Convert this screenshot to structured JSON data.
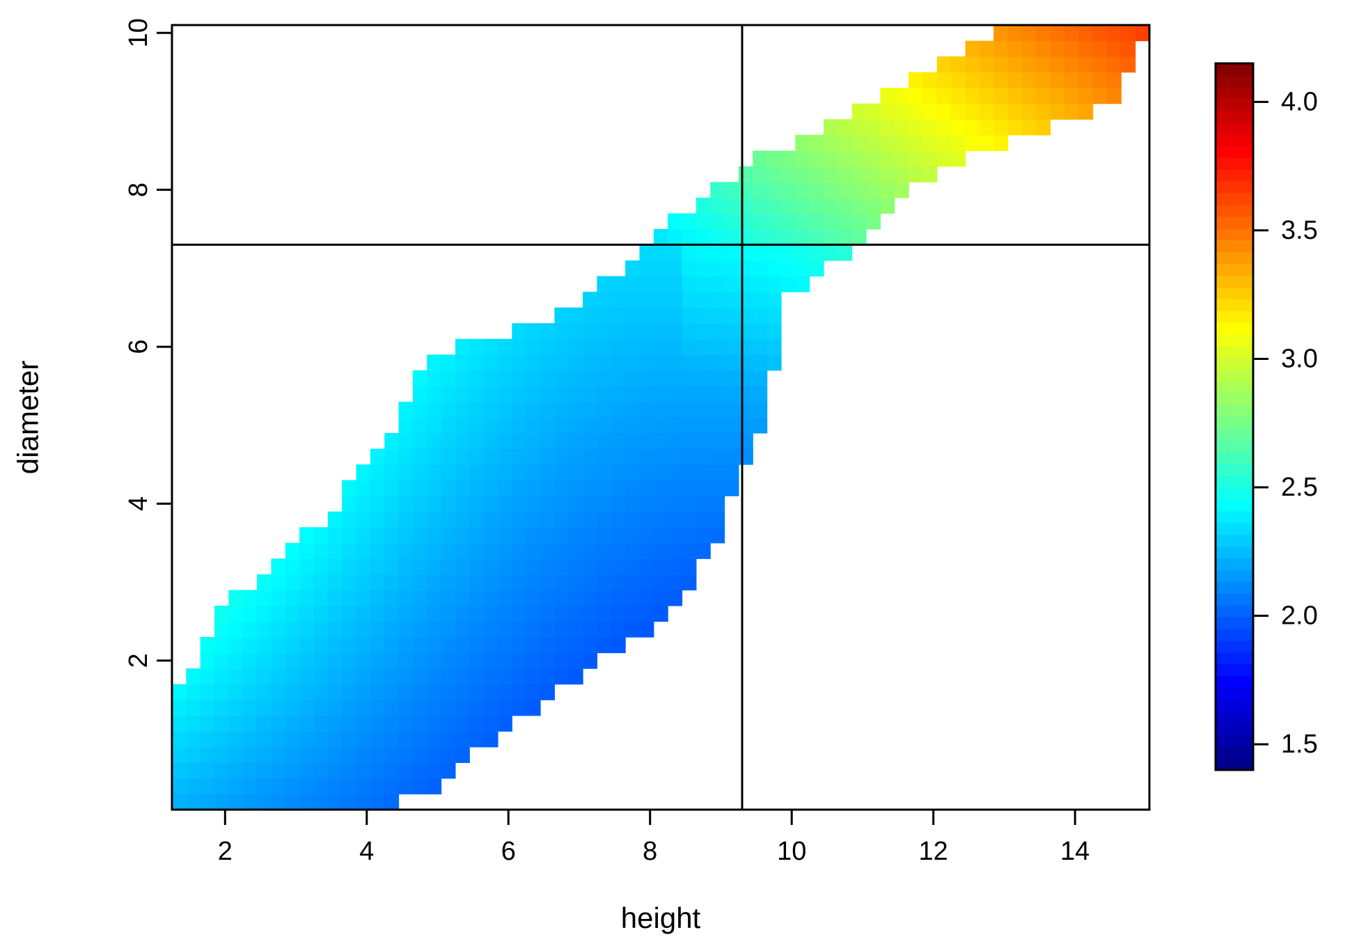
{
  "chart_data": {
    "type": "heatmap",
    "title": "",
    "xlabel": "height",
    "ylabel": "diameter",
    "xlim": [
      1.25,
      15.05
    ],
    "ylim": [
      0.1,
      10.1
    ],
    "xticks": [
      2,
      4,
      6,
      8,
      10,
      12,
      14
    ],
    "yticks": [
      2,
      4,
      6,
      8,
      10
    ],
    "grid": false,
    "cell_size": {
      "dx": 0.2,
      "dy": 0.2
    },
    "reference_lines": {
      "vertical_x": 9.3,
      "horizontal_y": 7.3
    },
    "colorbar": {
      "min": 1.4,
      "max": 4.15,
      "ticks": [
        1.5,
        2.0,
        2.5,
        3.0,
        3.5,
        4.0
      ],
      "tick_labels": [
        "1.5",
        "2.0",
        "2.5",
        "3.0",
        "3.5",
        "4.0"
      ],
      "placement": "right",
      "colors": [
        "#00007F",
        "#0000FF",
        "#007FFF",
        "#00FFFF",
        "#7FFF7F",
        "#FFFF00",
        "#FF7F00",
        "#FF0000",
        "#7F0000"
      ]
    },
    "region": {
      "note_values": "value field varies from about 1.4 (lower-right of band) to 4.15 (top-right corner)",
      "diameter_min": 0.1,
      "diameter_max": 10.1,
      "bounds": [
        {
          "y": 0.1,
          "xmin": 1.25,
          "xmax": 4.25
        },
        {
          "y": 0.3,
          "xmin": 1.25,
          "xmax": 4.85
        },
        {
          "y": 1.5,
          "xmin": 1.25,
          "xmax": 6.5
        },
        {
          "y": 2.7,
          "xmin": 2.0,
          "xmax": 8.5
        },
        {
          "y": 3.9,
          "xmin": 3.5,
          "xmax": 9.1
        },
        {
          "y": 4.9,
          "xmin": 4.3,
          "xmax": 9.55
        },
        {
          "y": 5.9,
          "xmin": 4.9,
          "xmax": 9.8
        },
        {
          "y": 6.5,
          "xmin": 7.0,
          "xmax": 9.8
        },
        {
          "y": 7.3,
          "xmin": 7.9,
          "xmax": 10.9
        },
        {
          "y": 8.3,
          "xmin": 9.3,
          "xmax": 12.1
        },
        {
          "y": 9.1,
          "xmin": 11.1,
          "xmax": 14.5
        },
        {
          "y": 10.1,
          "xmin": 13.1,
          "xmax": 15.05
        }
      ]
    }
  }
}
